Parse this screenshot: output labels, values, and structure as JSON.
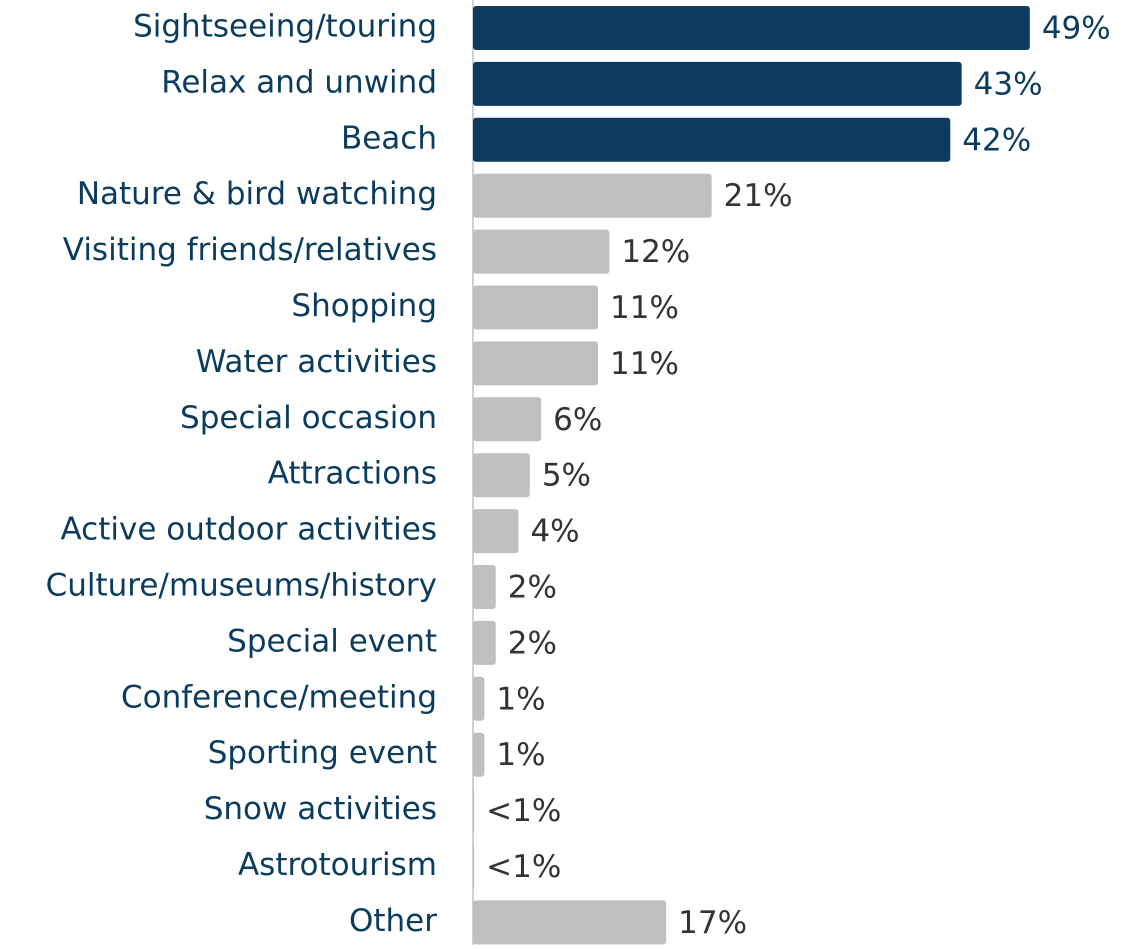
{
  "chart_data": {
    "type": "bar",
    "orientation": "horizontal",
    "categories": [
      "Sightseeing/touring",
      "Relax and unwind",
      "Beach",
      "Nature & bird watching",
      "Visiting friends/relatives",
      "Shopping",
      "Water activities",
      "Special occasion",
      "Attractions",
      "Active outdoor activities",
      "Culture/museums/history",
      "Special event",
      "Conference/meeting",
      "Sporting event",
      "Snow activities",
      "Astrotourism",
      "Other"
    ],
    "values": [
      49,
      43,
      42,
      21,
      12,
      11,
      11,
      6,
      5,
      4,
      2,
      2,
      1,
      1,
      0.1,
      0.1,
      17
    ],
    "value_labels": [
      "49%",
      "43%",
      "42%",
      "21%",
      "12%",
      "11%",
      "11%",
      "6%",
      "5%",
      "4%",
      "2%",
      "2%",
      "1%",
      "1%",
      "<1%",
      "<1%",
      "17%"
    ],
    "colors": [
      "#0b3c5d",
      "#0b3c5d",
      "#0b3c5d",
      "#bfbfbf",
      "#bfbfbf",
      "#bfbfbf",
      "#bfbfbf",
      "#bfbfbf",
      "#bfbfbf",
      "#bfbfbf",
      "#bfbfbf",
      "#bfbfbf",
      "#bfbfbf",
      "#bfbfbf",
      "#bfbfbf",
      "#bfbfbf",
      "#bfbfbf"
    ],
    "xlim": [
      0,
      55
    ]
  }
}
